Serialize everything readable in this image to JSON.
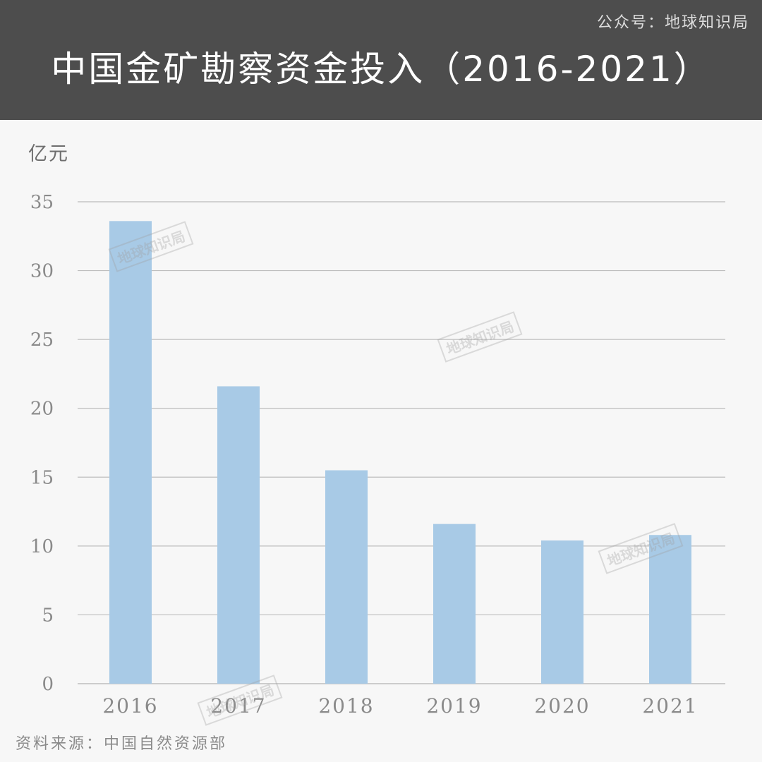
{
  "header": {
    "account": "公众号：地球知识局",
    "title": "中国金矿勘察资金投入（2016-2021）"
  },
  "unit_label": "亿元",
  "source": "资料来源：中国自然资源部",
  "watermark": "地球知识局",
  "colors": {
    "header_bg": "#4d4d4d",
    "bar": "#a8cae6",
    "grid": "#bdbdbd"
  },
  "chart_data": {
    "type": "bar",
    "title": "中国金矿勘察资金投入（2016-2021）",
    "ylabel": "亿元",
    "xlabel": "",
    "categories": [
      "2016",
      "2017",
      "2018",
      "2019",
      "2020",
      "2021"
    ],
    "values": [
      33.6,
      21.6,
      15.5,
      11.6,
      10.4,
      10.8
    ],
    "ylim": [
      0,
      35
    ],
    "yticks": [
      0,
      5,
      10,
      15,
      20,
      25,
      30,
      35
    ],
    "grid": true,
    "legend": "none"
  }
}
